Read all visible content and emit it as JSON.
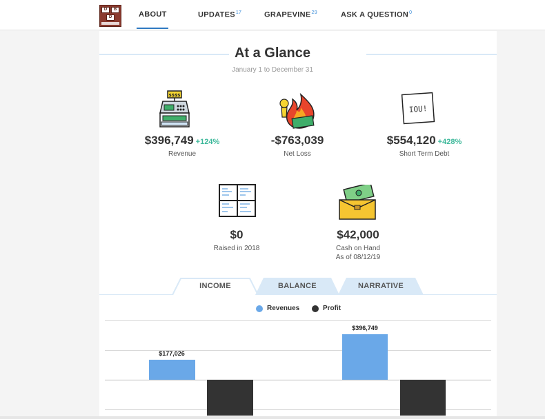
{
  "nav": {
    "logo_text": "DBD",
    "items": [
      {
        "label": "ABOUT",
        "badge": ""
      },
      {
        "label": "UPDATES",
        "badge": "17"
      },
      {
        "label": "GRAPEVINE",
        "badge": "29"
      },
      {
        "label": "ASK A QUESTION",
        "badge": "0"
      }
    ]
  },
  "glance": {
    "title": "At a Glance",
    "subtitle": "January 1 to December 31"
  },
  "stats": {
    "revenue": {
      "value": "$396,749",
      "change": "+124%",
      "label": "Revenue",
      "icon": "cash-register-icon"
    },
    "net_loss": {
      "value": "-$763,039",
      "label": "Net Loss",
      "icon": "money-fire-icon"
    },
    "debt": {
      "value": "$554,120",
      "change": "+428%",
      "label": "Short Term Debt",
      "icon": "iou-note-icon",
      "note_text": "IOU!"
    },
    "raised": {
      "value": "$0",
      "label": "Raised in 2018",
      "icon": "whiteboard-icon"
    },
    "cash": {
      "value": "$42,000",
      "label": "Cash on Hand",
      "label2": "As of 08/12/19",
      "icon": "wallet-icon"
    }
  },
  "tabs": [
    {
      "label": "INCOME",
      "active": true
    },
    {
      "label": "BALANCE",
      "active": false
    },
    {
      "label": "NARRATIVE",
      "active": false
    }
  ],
  "chart_data": {
    "type": "bar",
    "series": [
      {
        "name": "Revenues",
        "color": "#6aa8e8",
        "values": [
          177026,
          396749
        ],
        "labels": [
          "$177,026",
          "$396,749"
        ]
      },
      {
        "name": "Profit",
        "color": "#333333",
        "values": [
          -315000,
          -315000
        ]
      }
    ],
    "legend_position": "top-center",
    "grid": true
  }
}
